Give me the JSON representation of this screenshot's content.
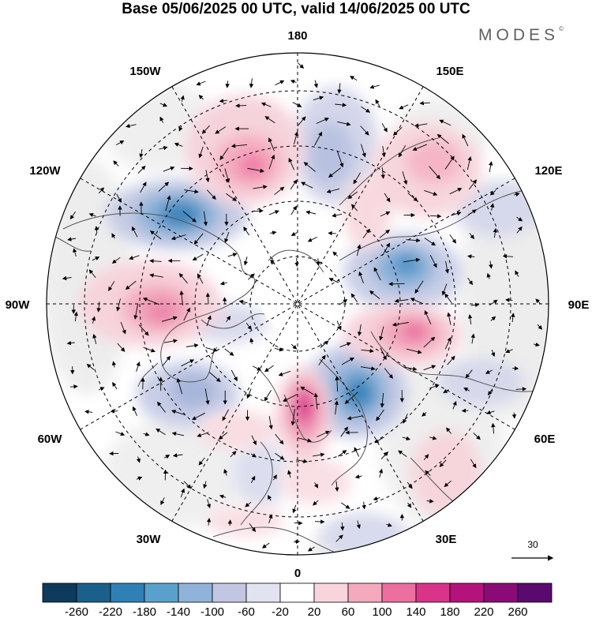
{
  "title": "Base 05/06/2025 00 UTC, valid 14/06/2025 00 UTC",
  "brand": "MODES",
  "brand_mark": "©",
  "longitude_labels": {
    "top": "180",
    "top_left": "150W",
    "top_right": "150E",
    "upper_left": "120W",
    "upper_right": "120E",
    "left": "90W",
    "right": "90E",
    "lower_left": "60W",
    "lower_right": "60E",
    "bottom_left": "30W",
    "bottom_right": "30E",
    "bottom": "0"
  },
  "reference_vector": {
    "value": "30"
  },
  "colorbar": {
    "ticks": [
      "-260",
      "-220",
      "-180",
      "-140",
      "-100",
      "-60",
      "-20",
      "20",
      "60",
      "100",
      "140",
      "180",
      "220",
      "260"
    ],
    "colors": [
      "#0d3b5c",
      "#1b5f8c",
      "#2f80b5",
      "#5aa0cc",
      "#8fb3d9",
      "#c2c6e2",
      "#e2e3f0",
      "#ffffff",
      "#f8d5dc",
      "#f4a9bd",
      "#ec6fa0",
      "#d9338a",
      "#b3137a",
      "#8a0b78",
      "#5a0a6e"
    ]
  },
  "colors": {
    "land_gray": "#eaeaea",
    "coast": "#555555"
  }
}
